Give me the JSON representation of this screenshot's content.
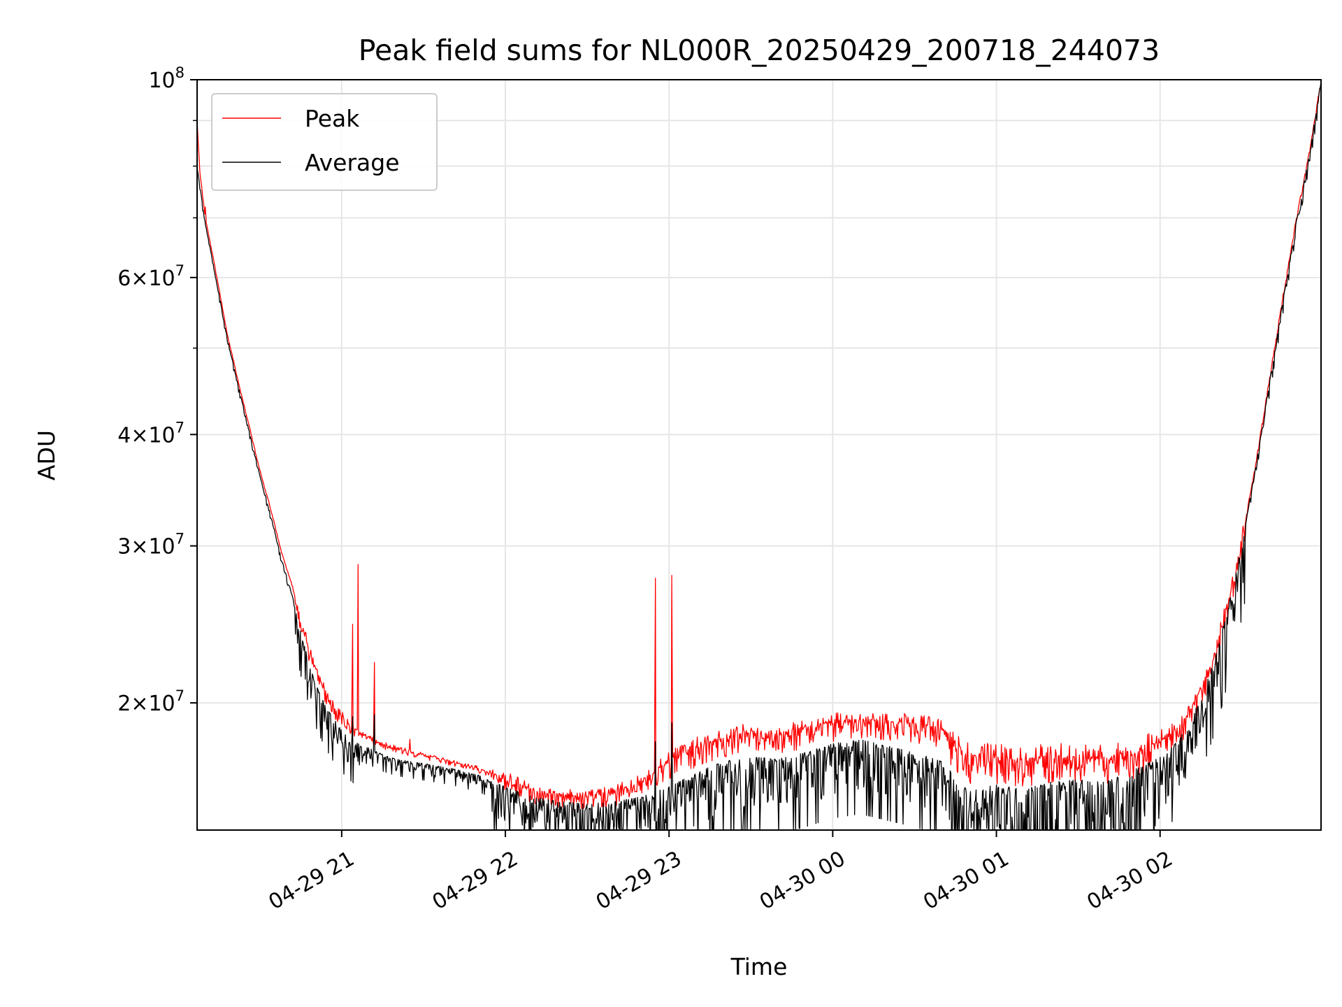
{
  "chart_data": {
    "type": "line",
    "title": "Peak field sums for NL000R_20250429_200718_244073",
    "xlabel": "Time",
    "ylabel": "ADU",
    "yscale": "log",
    "grid": true,
    "legend_position": "top-left",
    "x_range": [
      "2025-04-29 20:07",
      "2025-04-30 02:59"
    ],
    "ylim": [
      14400000,
      100000000
    ],
    "x_ticks": [
      {
        "t": "2025-04-29 21:00",
        "label": "04-29 21"
      },
      {
        "t": "2025-04-29 22:00",
        "label": "04-29 22"
      },
      {
        "t": "2025-04-29 23:00",
        "label": "04-29 23"
      },
      {
        "t": "2025-04-30 00:00",
        "label": "04-30 00"
      },
      {
        "t": "2025-04-30 01:00",
        "label": "04-30 01"
      },
      {
        "t": "2025-04-30 02:00",
        "label": "04-30 02"
      }
    ],
    "y_ticks": [
      {
        "value": 20000000,
        "mantissa": "2",
        "exp": "7"
      },
      {
        "value": 30000000,
        "mantissa": "3",
        "exp": "7"
      },
      {
        "value": 40000000,
        "mantissa": "4",
        "exp": "7"
      },
      {
        "value": 60000000,
        "mantissa": "6",
        "exp": "7"
      },
      {
        "value": 100000000,
        "mantissa": "",
        "exp": "8"
      }
    ],
    "y_minor_ticks": [
      50000000,
      70000000,
      80000000,
      90000000
    ],
    "series": [
      {
        "name": "Peak",
        "color": "#ff0000",
        "points": [
          [
            "2025-04-29 20:07",
            90000000
          ],
          [
            "2025-04-29 20:08",
            79000000
          ],
          [
            "2025-04-29 20:10",
            70000000
          ],
          [
            "2025-04-29 20:13",
            63000000
          ],
          [
            "2025-04-29 20:18",
            52000000
          ],
          [
            "2025-04-29 20:22",
            46000000
          ],
          [
            "2025-04-29 20:26",
            41000000
          ],
          [
            "2025-04-29 20:30",
            36500000
          ],
          [
            "2025-04-29 20:34",
            33000000
          ],
          [
            "2025-04-29 20:38",
            29500000
          ],
          [
            "2025-04-29 20:42",
            27000000
          ],
          [
            "2025-04-29 20:45",
            24800000
          ],
          [
            "2025-04-29 20:48",
            23000000
          ],
          [
            "2025-04-29 20:51",
            21600000
          ],
          [
            "2025-04-29 20:54",
            20600000
          ],
          [
            "2025-04-29 20:57",
            19900000
          ],
          [
            "2025-04-29 21:00",
            19300000
          ],
          [
            "2025-04-29 21:03",
            18900000
          ],
          [
            "2025-04-29 21:06",
            18600000
          ],
          [
            "2025-04-29 21:10",
            18300000
          ],
          [
            "2025-04-29 21:15",
            18000000
          ],
          [
            "2025-04-29 21:20",
            17800000
          ],
          [
            "2025-04-29 21:30",
            17500000
          ],
          [
            "2025-04-29 21:40",
            17200000
          ],
          [
            "2025-04-29 21:50",
            16900000
          ],
          [
            "2025-04-29 22:00",
            16500000
          ],
          [
            "2025-04-29 22:10",
            16000000
          ],
          [
            "2025-04-29 22:20",
            15800000
          ],
          [
            "2025-04-29 22:30",
            15700000
          ],
          [
            "2025-04-29 22:40",
            15900000
          ],
          [
            "2025-04-29 22:50",
            16400000
          ],
          [
            "2025-04-29 23:00",
            17300000
          ],
          [
            "2025-04-29 23:10",
            17900000
          ],
          [
            "2025-04-29 23:20",
            18300000
          ],
          [
            "2025-04-29 23:30",
            18600000
          ],
          [
            "2025-04-29 23:40",
            18500000
          ],
          [
            "2025-04-29 23:50",
            18800000
          ],
          [
            "2025-04-30 00:00",
            19100000
          ],
          [
            "2025-04-30 00:10",
            19200000
          ],
          [
            "2025-04-30 00:20",
            19100000
          ],
          [
            "2025-04-30 00:30",
            19000000
          ],
          [
            "2025-04-30 00:40",
            18800000
          ],
          [
            "2025-04-30 00:50",
            17500000
          ],
          [
            "2025-04-30 01:00",
            17500000
          ],
          [
            "2025-04-30 01:10",
            17300000
          ],
          [
            "2025-04-30 01:20",
            17500000
          ],
          [
            "2025-04-30 01:30",
            17400000
          ],
          [
            "2025-04-30 01:40",
            17400000
          ],
          [
            "2025-04-30 01:50",
            17700000
          ],
          [
            "2025-04-30 02:00",
            18100000
          ],
          [
            "2025-04-30 02:05",
            18600000
          ],
          [
            "2025-04-30 02:10",
            19400000
          ],
          [
            "2025-04-30 02:15",
            20800000
          ],
          [
            "2025-04-30 02:20",
            22800000
          ],
          [
            "2025-04-30 02:25",
            26000000
          ],
          [
            "2025-04-30 02:30",
            30500000
          ],
          [
            "2025-04-30 02:35",
            37000000
          ],
          [
            "2025-04-30 02:40",
            46000000
          ],
          [
            "2025-04-30 02:45",
            57000000
          ],
          [
            "2025-04-30 02:50",
            70000000
          ],
          [
            "2025-04-30 02:55",
            84000000
          ],
          [
            "2025-04-30 02:59",
            100000000
          ]
        ],
        "spikes": [
          [
            "2025-04-29 20:10",
            72000000
          ],
          [
            "2025-04-29 21:04",
            24500000
          ],
          [
            "2025-04-29 21:06",
            28600000
          ],
          [
            "2025-04-29 21:12",
            22200000
          ],
          [
            "2025-04-29 21:25",
            18200000
          ],
          [
            "2025-04-29 22:55",
            27600000
          ],
          [
            "2025-04-29 23:01",
            27800000
          ]
        ]
      },
      {
        "name": "Average",
        "color": "#000000",
        "points": [
          [
            "2025-04-29 20:07",
            80000000
          ],
          [
            "2025-04-29 20:10",
            69000000
          ],
          [
            "2025-04-29 20:13",
            62000000
          ],
          [
            "2025-04-29 20:18",
            51500000
          ],
          [
            "2025-04-29 20:22",
            45500000
          ],
          [
            "2025-04-29 20:26",
            40500000
          ],
          [
            "2025-04-29 20:30",
            36000000
          ],
          [
            "2025-04-29 20:34",
            32500000
          ],
          [
            "2025-04-29 20:38",
            29000000
          ],
          [
            "2025-04-29 20:42",
            26300000
          ],
          [
            "2025-04-29 20:45",
            24000000
          ],
          [
            "2025-04-29 20:48",
            22200000
          ],
          [
            "2025-04-29 20:51",
            20800000
          ],
          [
            "2025-04-29 20:54",
            19900000
          ],
          [
            "2025-04-29 20:57",
            19200000
          ],
          [
            "2025-04-29 21:00",
            18700000
          ],
          [
            "2025-04-29 21:03",
            18300000
          ],
          [
            "2025-04-29 21:06",
            18000000
          ],
          [
            "2025-04-29 21:10",
            17800000
          ],
          [
            "2025-04-29 21:15",
            17500000
          ],
          [
            "2025-04-29 21:20",
            17300000
          ],
          [
            "2025-04-29 21:30",
            17100000
          ],
          [
            "2025-04-29 21:40",
            16900000
          ],
          [
            "2025-04-29 21:50",
            16600000
          ],
          [
            "2025-04-29 22:00",
            16100000
          ],
          [
            "2025-04-29 22:10",
            15700000
          ],
          [
            "2025-04-29 22:20",
            15500000
          ],
          [
            "2025-04-29 22:30",
            15400000
          ],
          [
            "2025-04-29 22:40",
            15500000
          ],
          [
            "2025-04-29 22:50",
            15700000
          ],
          [
            "2025-04-29 23:00",
            16100000
          ],
          [
            "2025-04-29 23:10",
            16700000
          ],
          [
            "2025-04-29 23:20",
            17200000
          ],
          [
            "2025-04-29 23:30",
            17400000
          ],
          [
            "2025-04-29 23:40",
            17300000
          ],
          [
            "2025-04-29 23:50",
            17600000
          ],
          [
            "2025-04-30 00:00",
            18000000
          ],
          [
            "2025-04-30 00:10",
            18200000
          ],
          [
            "2025-04-30 00:20",
            17900000
          ],
          [
            "2025-04-30 00:30",
            17600000
          ],
          [
            "2025-04-30 00:40",
            17200000
          ],
          [
            "2025-04-30 00:50",
            15900000
          ],
          [
            "2025-04-30 01:00",
            16200000
          ],
          [
            "2025-04-30 01:10",
            16000000
          ],
          [
            "2025-04-30 01:20",
            16300000
          ],
          [
            "2025-04-30 01:30",
            16400000
          ],
          [
            "2025-04-30 01:40",
            16300000
          ],
          [
            "2025-04-30 01:50",
            16800000
          ],
          [
            "2025-04-30 02:00",
            17400000
          ],
          [
            "2025-04-30 02:05",
            17900000
          ],
          [
            "2025-04-30 02:10",
            18800000
          ],
          [
            "2025-04-30 02:15",
            20300000
          ],
          [
            "2025-04-30 02:20",
            22400000
          ],
          [
            "2025-04-30 02:25",
            25600000
          ],
          [
            "2025-04-30 02:30",
            30200000
          ],
          [
            "2025-04-30 02:35",
            36700000
          ],
          [
            "2025-04-30 02:40",
            45600000
          ],
          [
            "2025-04-30 02:45",
            56500000
          ],
          [
            "2025-04-30 02:50",
            69500000
          ],
          [
            "2025-04-30 02:55",
            83500000
          ],
          [
            "2025-04-30 02:59",
            100000000
          ]
        ],
        "spikes": [
          [
            "2025-04-29 21:04",
            19300000
          ],
          [
            "2025-04-29 21:12",
            19400000
          ],
          [
            "2025-04-29 22:55",
            18100000
          ],
          [
            "2025-04-29 23:01",
            19000000
          ]
        ]
      }
    ]
  }
}
